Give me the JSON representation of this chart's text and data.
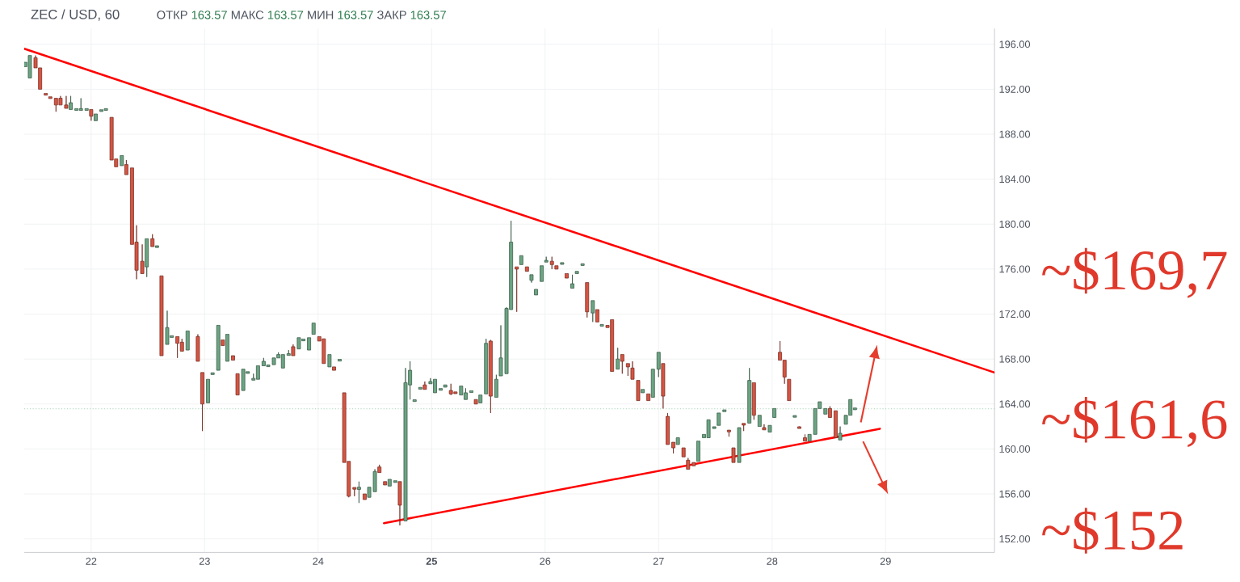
{
  "chart_data": {
    "type": "candlestick",
    "title": "ZEC / USD, 60",
    "subtitle": "ОТКР 163.57 МАКС 163.57 МИН 163.57 ЗАКР 163.57",
    "x": [
      21.42,
      21.46,
      21.51,
      21.55,
      21.6,
      21.64,
      21.69,
      21.73,
      21.78,
      21.82,
      21.87,
      21.91,
      21.96,
      22.0,
      22.04,
      22.09,
      22.13,
      22.18,
      22.22,
      22.27,
      22.31,
      22.36,
      22.4,
      22.45,
      22.49,
      22.54,
      22.58,
      22.62,
      22.67,
      22.71,
      22.76,
      22.8,
      22.85,
      22.94,
      22.98,
      23.03,
      23.07,
      23.12,
      23.16,
      23.2,
      23.25,
      23.29,
      23.34,
      23.38,
      23.43,
      23.47,
      23.52,
      23.56,
      23.61,
      23.65,
      23.69,
      23.74,
      23.78,
      23.83,
      23.87,
      23.92,
      23.96,
      24.01,
      24.05,
      24.1,
      24.14,
      24.19,
      24.23,
      24.27,
      24.32,
      24.36,
      24.41,
      24.45,
      24.5,
      24.54,
      24.59,
      24.63,
      24.68,
      24.72,
      24.77,
      24.81,
      24.85,
      24.9,
      24.94,
      24.99,
      25.03,
      25.08,
      25.12,
      25.17,
      25.21,
      25.26,
      25.3,
      25.35,
      25.39,
      25.43,
      25.48,
      25.52,
      25.57,
      25.61,
      25.66,
      25.7,
      25.75,
      25.79,
      25.84,
      25.88,
      25.92,
      25.97,
      26.01,
      26.06,
      26.1,
      26.15,
      26.19,
      26.24,
      26.28,
      26.33,
      26.37,
      26.42,
      26.46,
      26.5,
      26.55,
      26.59,
      26.64,
      26.68,
      26.73,
      26.77,
      26.82,
      26.86,
      26.91,
      26.95,
      27.0,
      27.04,
      27.08,
      27.13,
      27.17,
      27.22,
      27.26,
      27.31,
      27.35,
      27.4,
      27.44,
      27.49,
      27.53,
      27.58,
      27.62,
      27.66,
      27.71,
      27.75,
      27.8,
      27.84,
      27.89,
      27.93,
      27.98,
      28.02,
      28.07,
      28.11,
      28.15,
      28.2,
      28.24,
      28.29,
      28.33,
      28.38,
      28.42,
      28.47,
      28.51,
      28.56,
      28.6,
      28.65,
      28.69,
      28.73
    ],
    "ohlc": [
      [
        194.0,
        194.4,
        194.0,
        194.4
      ],
      [
        193.0,
        195.0,
        193.0,
        195.0
      ],
      [
        194.8,
        195.0,
        193.9,
        193.9
      ],
      [
        193.9,
        193.9,
        192.0,
        192.0
      ],
      [
        191.6,
        191.6,
        191.5,
        191.5
      ],
      [
        191.3,
        191.3,
        191.2,
        191.2
      ],
      [
        191.2,
        191.2,
        190.0,
        190.6
      ],
      [
        191.2,
        191.4,
        190.6,
        190.6
      ],
      [
        190.6,
        191.4,
        190.3,
        190.3
      ],
      [
        190.2,
        191.4,
        190.2,
        190.8
      ],
      [
        190.2,
        190.2,
        190.2,
        190.2
      ],
      [
        190.2,
        191.2,
        190.2,
        190.2
      ],
      [
        190.2,
        190.2,
        190.2,
        190.2
      ],
      [
        190.2,
        190.2,
        189.2,
        189.6
      ],
      [
        189.2,
        189.8,
        189.2,
        189.8
      ],
      [
        190.1,
        190.1,
        190.1,
        190.1
      ],
      [
        190.2,
        190.2,
        190.2,
        190.2
      ],
      [
        189.5,
        189.5,
        185.7,
        185.7
      ],
      [
        185.8,
        185.8,
        185.1,
        185.1
      ],
      [
        185.2,
        186.1,
        185.2,
        186.1
      ],
      [
        185.3,
        185.7,
        184.4,
        184.4
      ],
      [
        185.0,
        185.0,
        178.2,
        178.2
      ],
      [
        178.4,
        179.9,
        175.1,
        175.9
      ],
      [
        176.7,
        178.2,
        175.6,
        175.6
      ],
      [
        176.2,
        178.7,
        175.3,
        178.7
      ],
      [
        178.7,
        179.1,
        178.0,
        178.0
      ],
      [
        178.0,
        178.0,
        178.0,
        178.0
      ],
      [
        175.4,
        175.4,
        168.3,
        168.3
      ],
      [
        169.3,
        172.3,
        169.3,
        170.8
      ],
      [
        170.0,
        170.0,
        170.0,
        170.0
      ],
      [
        170.0,
        170.0,
        168.1,
        169.4
      ],
      [
        169.5,
        169.8,
        168.7,
        168.7
      ],
      [
        168.8,
        170.5,
        168.8,
        170.5
      ],
      [
        170.0,
        170.2,
        167.8,
        167.8
      ],
      [
        166.8,
        166.8,
        161.6,
        164.0
      ],
      [
        164.1,
        166.2,
        164.1,
        166.2
      ],
      [
        166.7,
        166.7,
        166.7,
        166.7
      ],
      [
        167.0,
        171.0,
        167.0,
        171.0
      ],
      [
        169.7,
        169.7,
        169.2,
        169.2
      ],
      [
        167.8,
        170.2,
        167.8,
        170.2
      ],
      [
        168.3,
        168.3,
        167.9,
        167.9
      ],
      [
        166.7,
        166.7,
        164.8,
        164.8
      ],
      [
        165.2,
        167.1,
        165.2,
        167.1
      ],
      [
        166.8,
        166.8,
        166.8,
        166.8
      ],
      [
        166.2,
        166.7,
        166.2,
        166.2
      ],
      [
        166.2,
        167.4,
        166.2,
        167.4
      ],
      [
        167.4,
        168.1,
        167.4,
        167.8
      ],
      [
        167.4,
        167.4,
        167.4,
        167.4
      ],
      [
        167.5,
        168.1,
        167.5,
        168.1
      ],
      [
        168.1,
        168.6,
        168.1,
        168.4
      ],
      [
        167.2,
        168.4,
        167.2,
        168.4
      ],
      [
        168.4,
        168.8,
        168.4,
        168.4
      ],
      [
        169.1,
        169.3,
        168.3,
        168.3
      ],
      [
        168.9,
        169.9,
        168.9,
        169.9
      ],
      [
        169.7,
        169.7,
        169.7,
        169.7
      ],
      [
        168.8,
        169.9,
        168.8,
        169.9
      ],
      [
        170.2,
        171.2,
        170.2,
        171.2
      ],
      [
        170.0,
        170.0,
        169.6,
        169.6
      ],
      [
        169.8,
        169.8,
        167.6,
        167.6
      ],
      [
        167.3,
        168.4,
        167.3,
        168.4
      ],
      [
        167.3,
        167.3,
        167.0,
        167.0
      ],
      [
        167.9,
        167.9,
        167.9,
        167.9
      ],
      [
        165.0,
        165.0,
        158.8,
        158.8
      ],
      [
        158.9,
        158.9,
        155.7,
        155.8
      ],
      [
        156.5,
        156.5,
        155.8,
        156.5
      ],
      [
        156.4,
        157.1,
        155.2,
        156.6
      ],
      [
        156.0,
        156.0,
        155.5,
        155.5
      ],
      [
        155.7,
        156.6,
        155.7,
        156.6
      ],
      [
        156.2,
        158.2,
        156.2,
        158.0
      ],
      [
        158.4,
        158.6,
        157.9,
        157.9
      ],
      [
        157.1,
        157.1,
        156.8,
        156.8
      ],
      [
        156.7,
        157.3,
        156.7,
        157.3
      ],
      [
        157.1,
        157.1,
        157.1,
        157.1
      ],
      [
        157.1,
        157.1,
        153.2,
        155.0
      ],
      [
        153.6,
        167.2,
        153.6,
        165.9
      ],
      [
        165.7,
        167.8,
        164.4,
        167.0
      ],
      [
        164.3,
        164.3,
        164.3,
        164.3
      ],
      [
        165.4,
        165.4,
        165.4,
        165.4
      ],
      [
        165.7,
        166.0,
        165.3,
        165.3
      ],
      [
        165.8,
        166.3,
        165.8,
        166.0
      ],
      [
        165.0,
        166.2,
        165.0,
        166.2
      ],
      [
        165.3,
        165.3,
        165.3,
        165.3
      ],
      [
        165.5,
        165.7,
        165.5,
        165.7
      ],
      [
        165.2,
        165.8,
        164.8,
        164.9
      ],
      [
        165.0,
        165.0,
        165.0,
        165.0
      ],
      [
        164.8,
        165.6,
        164.8,
        165.6
      ],
      [
        164.4,
        165.4,
        164.4,
        165.0
      ],
      [
        165.1,
        165.1,
        165.1,
        165.1
      ],
      [
        164.4,
        164.4,
        164.0,
        164.0
      ],
      [
        164.1,
        164.8,
        164.1,
        164.8
      ],
      [
        164.9,
        169.8,
        164.9,
        169.4
      ],
      [
        169.6,
        169.7,
        163.2,
        164.7
      ],
      [
        164.6,
        166.6,
        164.6,
        166.2
      ],
      [
        166.5,
        171.0,
        166.5,
        168.1
      ],
      [
        166.7,
        172.6,
        166.7,
        172.5
      ],
      [
        172.4,
        180.3,
        172.4,
        178.4
      ],
      [
        176.2,
        176.2,
        172.2,
        176.0
      ],
      [
        176.4,
        177.2,
        176.4,
        177.2
      ],
      [
        176.2,
        176.2,
        175.8,
        175.8
      ],
      [
        175.0,
        175.5,
        174.8,
        175.5
      ],
      [
        173.7,
        174.2,
        173.7,
        174.2
      ],
      [
        174.9,
        176.3,
        174.9,
        176.3
      ],
      [
        176.7,
        177.1,
        176.7,
        176.7
      ],
      [
        176.7,
        177.1,
        176.0,
        176.4
      ],
      [
        176.3,
        176.3,
        176.0,
        176.0
      ],
      [
        176.5,
        176.5,
        176.5,
        176.5
      ],
      [
        175.6,
        175.6,
        175.2,
        175.2
      ],
      [
        174.3,
        175.5,
        174.3,
        174.7
      ],
      [
        175.6,
        175.8,
        175.6,
        175.8
      ],
      [
        176.4,
        176.4,
        176.4,
        176.4
      ],
      [
        174.8,
        174.8,
        171.7,
        172.2
      ],
      [
        172.1,
        173.2,
        171.3,
        173.2
      ],
      [
        172.4,
        172.4,
        171.3,
        171.3
      ],
      [
        171.0,
        171.0,
        171.0,
        171.0
      ],
      [
        171.0,
        171.0,
        170.8,
        170.8
      ],
      [
        171.5,
        171.5,
        166.9,
        166.9
      ],
      [
        167.1,
        169.0,
        167.1,
        168.0
      ],
      [
        168.4,
        168.4,
        166.7,
        167.8
      ],
      [
        167.6,
        167.6,
        166.5,
        167.3
      ],
      [
        167.2,
        167.8,
        166.2,
        166.2
      ],
      [
        166.1,
        166.1,
        164.3,
        164.3
      ],
      [
        165.0,
        165.3,
        165.0,
        165.3
      ],
      [
        164.9,
        164.9,
        164.3,
        164.3
      ],
      [
        164.6,
        167.1,
        164.6,
        167.1
      ],
      [
        167.1,
        168.6,
        166.4,
        168.6
      ],
      [
        167.6,
        167.6,
        163.6,
        164.7
      ],
      [
        162.9,
        163.2,
        160.4,
        160.4
      ],
      [
        160.6,
        160.6,
        159.6,
        160.1
      ],
      [
        160.4,
        161.0,
        160.4,
        161.0
      ],
      [
        160.1,
        160.1,
        159.3,
        159.3
      ],
      [
        159.0,
        159.2,
        158.2,
        158.2
      ],
      [
        158.8,
        158.8,
        158.5,
        158.5
      ],
      [
        158.9,
        160.7,
        158.9,
        160.7
      ],
      [
        161.0,
        161.3,
        161.0,
        161.3
      ],
      [
        161.0,
        162.6,
        161.0,
        162.6
      ],
      [
        161.9,
        161.9,
        161.9,
        161.9
      ],
      [
        162.1,
        163.2,
        162.1,
        163.2
      ],
      [
        163.4,
        163.4,
        163.4,
        163.4
      ],
      [
        161.6,
        161.6,
        161.1,
        161.6
      ],
      [
        160.1,
        160.1,
        158.8,
        158.8
      ],
      [
        158.8,
        161.9,
        158.8,
        161.9
      ],
      [
        162.2,
        162.2,
        161.6,
        162.2
      ],
      [
        162.3,
        167.2,
        162.3,
        166.1
      ],
      [
        165.9,
        165.9,
        162.6,
        163.0
      ],
      [
        162.0,
        163.0,
        162.0,
        163.0
      ],
      [
        161.9,
        162.2,
        161.7,
        161.7
      ],
      [
        161.5,
        162.1,
        161.5,
        162.1
      ],
      [
        162.8,
        163.6,
        162.8,
        163.6
      ],
      [
        168.6,
        169.6,
        167.9,
        167.9
      ],
      [
        167.9,
        167.9,
        165.8,
        166.4
      ],
      [
        166.2,
        166.2,
        164.3,
        164.3
      ],
      [
        162.9,
        162.9,
        162.9,
        162.9
      ],
      [
        161.9,
        162.0,
        161.9,
        161.9
      ],
      [
        161.0,
        161.3,
        160.7,
        160.7
      ],
      [
        160.7,
        161.3,
        160.7,
        161.3
      ],
      [
        161.3,
        163.6,
        161.3,
        163.6
      ],
      [
        163.6,
        164.2,
        163.6,
        164.2
      ],
      [
        163.1,
        163.6,
        163.1,
        163.6
      ],
      [
        163.6,
        163.8,
        162.8,
        162.8
      ],
      [
        163.4,
        163.4,
        161.0,
        161.0
      ],
      [
        160.8,
        162.0,
        160.8,
        161.4
      ],
      [
        162.2,
        163.0,
        162.2,
        163.0
      ],
      [
        163.0,
        164.4,
        163.0,
        164.4
      ],
      [
        163.57,
        163.57,
        163.57,
        163.57
      ]
    ],
    "colors": [
      "#6ba583",
      "#6ba583",
      "#d75442",
      "#d75442",
      "#d75442",
      "#d75442",
      "#d75442",
      "#d75442",
      "#d75442",
      "#6ba583",
      "#6ba583",
      "#6ba583",
      "#6ba583",
      "#d75442",
      "#6ba583",
      "#6ba583",
      "#6ba583",
      "#d75442",
      "#d75442",
      "#6ba583",
      "#d75442",
      "#d75442",
      "#d75442",
      "#d75442",
      "#6ba583",
      "#d75442",
      "#6ba583",
      "#d75442",
      "#6ba583",
      "#6ba583",
      "#d75442",
      "#d75442",
      "#6ba583",
      "#d75442",
      "#d75442",
      "#6ba583",
      "#6ba583",
      "#6ba583",
      "#d75442",
      "#6ba583",
      "#d75442",
      "#d75442",
      "#6ba583",
      "#6ba583",
      "#6ba583",
      "#6ba583",
      "#6ba583",
      "#6ba583",
      "#6ba583",
      "#6ba583",
      "#6ba583",
      "#6ba583",
      "#d75442",
      "#6ba583",
      "#6ba583",
      "#6ba583",
      "#6ba583",
      "#d75442",
      "#d75442",
      "#6ba583",
      "#d75442",
      "#6ba583",
      "#d75442",
      "#d75442",
      "#d75442",
      "#6ba583",
      "#d75442",
      "#6ba583",
      "#6ba583",
      "#d75442",
      "#d75442",
      "#6ba583",
      "#6ba583",
      "#d75442",
      "#6ba583",
      "#6ba583",
      "#6ba583",
      "#6ba583",
      "#d75442",
      "#6ba583",
      "#6ba583",
      "#6ba583",
      "#6ba583",
      "#d75442",
      "#d75442",
      "#6ba583",
      "#6ba583",
      "#6ba583",
      "#d75442",
      "#6ba583",
      "#6ba583",
      "#d75442",
      "#6ba583",
      "#6ba583",
      "#6ba583",
      "#6ba583",
      "#d75442",
      "#6ba583",
      "#d75442",
      "#6ba583",
      "#6ba583",
      "#6ba583",
      "#6ba583",
      "#d75442",
      "#d75442",
      "#6ba583",
      "#d75442",
      "#6ba583",
      "#6ba583",
      "#6ba583",
      "#d75442",
      "#6ba583",
      "#d75442",
      "#6ba583",
      "#d75442",
      "#d75442",
      "#6ba583",
      "#d75442",
      "#d75442",
      "#d75442",
      "#d75442",
      "#6ba583",
      "#d75442",
      "#6ba583",
      "#6ba583",
      "#d75442",
      "#d75442",
      "#d75442",
      "#6ba583",
      "#d75442",
      "#d75442",
      "#d75442",
      "#6ba583",
      "#6ba583",
      "#6ba583",
      "#6ba583",
      "#6ba583",
      "#6ba583",
      "#d75442",
      "#d75442",
      "#6ba583",
      "#d75442",
      "#6ba583",
      "#d75442",
      "#6ba583",
      "#d75442",
      "#6ba583",
      "#6ba583",
      "#d75442",
      "#d75442",
      "#d75442",
      "#6ba583",
      "#d75442",
      "#d75442",
      "#6ba583",
      "#6ba583",
      "#6ba583",
      "#6ba583",
      "#d75442",
      "#d75442",
      "#6ba583",
      "#6ba583",
      "#6ba583",
      "#6ba583"
    ],
    "series": [
      {
        "type": "line",
        "x": [
          21.41,
          29.96
        ],
        "values": [
          195.6,
          166.8
        ],
        "color": "#ff0000"
      },
      {
        "type": "line",
        "x": [
          24.58,
          28.95
        ],
        "values": [
          153.4,
          161.8
        ],
        "color": "#ff0000"
      }
    ],
    "ref_lines": [
      {
        "axis": "y",
        "value": 163.57,
        "color": "#9fd0b2",
        "line_style": "dotted"
      }
    ],
    "annotations": [
      "~$169,7",
      "~$161,6",
      "~$152"
    ],
    "xlim": [
      21.41,
      29.96
    ],
    "ylim": [
      150.8,
      197.4
    ],
    "xticks": [
      22,
      23,
      24,
      {
        "value": 25,
        "label": "**25**"
      },
      26,
      27,
      28,
      29
    ],
    "yticks": [
      {
        "value": 152,
        "label": "152.00"
      },
      {
        "value": 156,
        "label": "156.00"
      },
      {
        "value": 160,
        "label": "160.00"
      },
      {
        "value": 164,
        "label": "164.00"
      },
      {
        "value": 168,
        "label": "168.00"
      },
      {
        "value": 172,
        "label": "172.00"
      },
      {
        "value": 176,
        "label": "176.00"
      },
      {
        "value": 180,
        "label": "180.00"
      },
      {
        "value": 184,
        "label": "184.00"
      },
      {
        "value": 188,
        "label": "188.00"
      },
      {
        "value": 192,
        "label": "192.00"
      },
      {
        "value": 196,
        "label": "196.00"
      }
    ],
    "grid": true
  }
}
